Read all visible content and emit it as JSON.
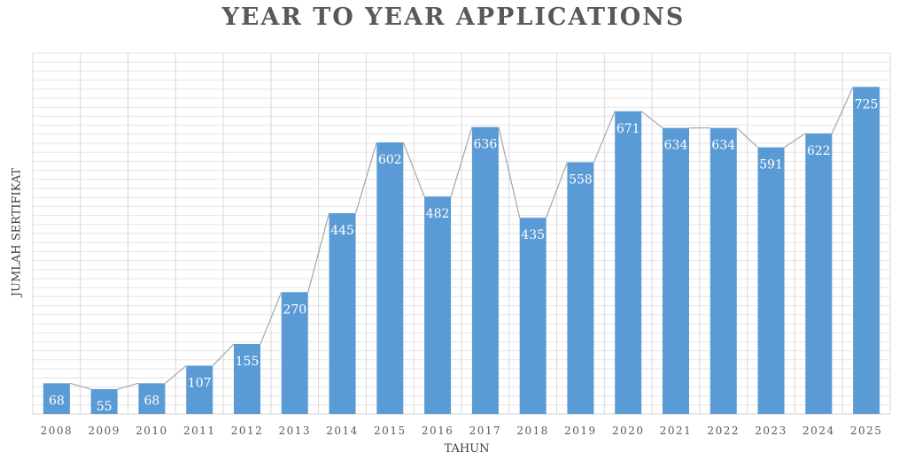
{
  "title": "YEAR TO YEAR APPLICATIONS",
  "xlabel": "TAHUN",
  "ylabel": "JUMLAH SERTIFIKAT",
  "colors": {
    "bar": "#5b9bd5",
    "line": "#a6a6a6",
    "grid": "#e6e6e6",
    "text": "#595959",
    "label": "#ffffff"
  },
  "chart_data": {
    "type": "bar",
    "title": "YEAR TO YEAR APPLICATIONS",
    "xlabel": "TAHUN",
    "ylabel": "JUMLAH SERTIFIKAT",
    "categories": [
      "2008",
      "2009",
      "2010",
      "2011",
      "2012",
      "2013",
      "2014",
      "2015",
      "2016",
      "2017",
      "2018",
      "2019",
      "2020",
      "2021",
      "2022",
      "2023",
      "2024",
      "2025"
    ],
    "values": [
      68,
      55,
      68,
      107,
      155,
      270,
      445,
      602,
      482,
      636,
      435,
      558,
      671,
      634,
      634,
      591,
      622,
      725
    ],
    "ylim": [
      0,
      800
    ],
    "grid": true,
    "data_labels": true,
    "connector_line": true,
    "legend": null
  }
}
